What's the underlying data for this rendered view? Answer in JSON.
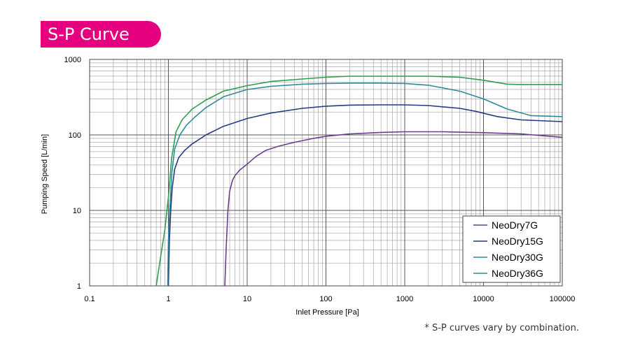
{
  "page": {
    "banner_title": "S-P Curve",
    "footnote": "* S-P curves vary by combination.",
    "accent_color": "#e5007f"
  },
  "chart_data": {
    "type": "line",
    "xlabel": "Inlet Pressure [Pa]",
    "ylabel": "Pumping Speed [L/min]",
    "xscale": "log",
    "yscale": "log",
    "xlim": [
      0.1,
      100000
    ],
    "ylim": [
      1,
      1000
    ],
    "x_tick_labels": [
      "0.1",
      "1",
      "10",
      "100",
      "1000",
      "10000",
      "100000"
    ],
    "x_tick_values": [
      0.1,
      1,
      10,
      100,
      1000,
      10000,
      100000
    ],
    "y_tick_labels": [
      "1",
      "10",
      "100",
      "1000"
    ],
    "y_tick_values": [
      1,
      10,
      100,
      1000
    ],
    "grid": true,
    "legend_position": "bottom-right",
    "series": [
      {
        "name": "NeoDry7G",
        "color": "#6a3d8f",
        "x": [
          5.2,
          5.4,
          5.7,
          6.0,
          6.5,
          7.0,
          8.0,
          10,
          13,
          17,
          25,
          40,
          70,
          100,
          200,
          500,
          1000,
          3000,
          10000,
          30000,
          100000
        ],
        "y": [
          1,
          3,
          10,
          18,
          25,
          29,
          34,
          41,
          52,
          62,
          71,
          80,
          90,
          96,
          103,
          108,
          110,
          110,
          107,
          103,
          93
        ]
      },
      {
        "name": "NeoDry15G",
        "color": "#253b83",
        "x": [
          1.0,
          1.03,
          1.07,
          1.12,
          1.2,
          1.35,
          1.6,
          2.0,
          3.0,
          5.0,
          10,
          20,
          50,
          100,
          200,
          500,
          1000,
          2000,
          5000,
          8000,
          15000,
          30000,
          100000
        ],
        "y": [
          1,
          4,
          10,
          20,
          35,
          50,
          62,
          76,
          100,
          130,
          165,
          195,
          225,
          240,
          248,
          250,
          250,
          245,
          225,
          205,
          175,
          158,
          150
        ]
      },
      {
        "name": "NeoDry30G",
        "color": "#2f8b9b",
        "x": [
          0.98,
          1.0,
          1.04,
          1.1,
          1.2,
          1.4,
          1.7,
          2.2,
          3.0,
          5.0,
          10,
          20,
          50,
          100,
          200,
          500,
          1000,
          2000,
          5000,
          10000,
          20000,
          40000,
          100000
        ],
        "y": [
          1,
          4,
          10,
          30,
          65,
          100,
          135,
          175,
          230,
          320,
          400,
          440,
          470,
          480,
          485,
          485,
          480,
          455,
          380,
          300,
          220,
          180,
          175
        ]
      },
      {
        "name": "NeoDry36G",
        "color": "#2f9e4e",
        "x": [
          0.7,
          0.8,
          0.9,
          1.0,
          1.1,
          1.25,
          1.5,
          2.0,
          3.0,
          5.0,
          10,
          20,
          50,
          100,
          200,
          500,
          1000,
          2000,
          5000,
          10000,
          20000,
          30000,
          100000
        ],
        "y": [
          1,
          2.5,
          5.5,
          15,
          50,
          110,
          160,
          220,
          290,
          380,
          450,
          510,
          550,
          580,
          600,
          600,
          600,
          600,
          580,
          530,
          470,
          465,
          465
        ]
      }
    ]
  }
}
